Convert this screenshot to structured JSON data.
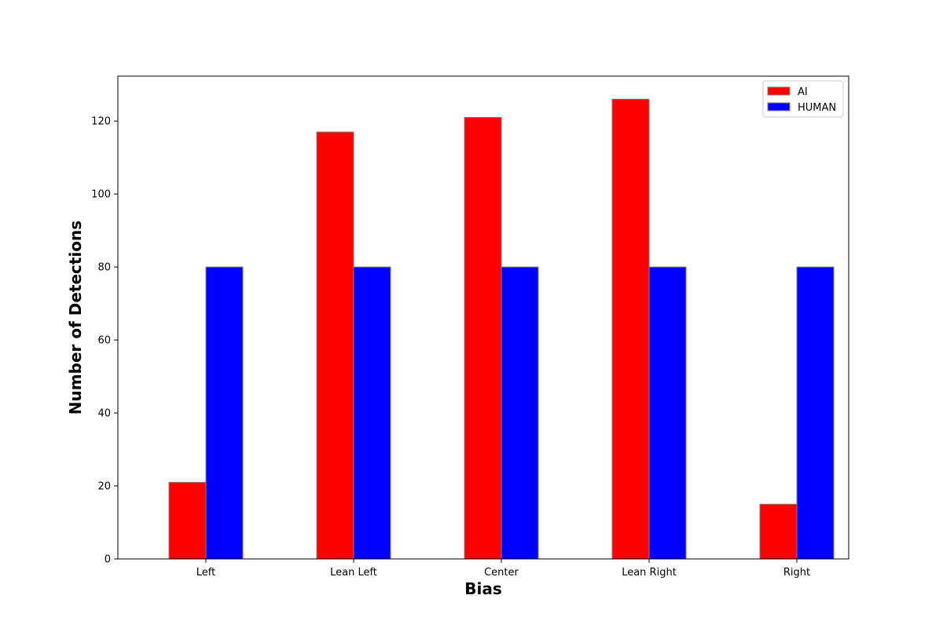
{
  "chart_data": {
    "type": "bar",
    "categories": [
      "Left",
      "Lean Left",
      "Center",
      "Lean Right",
      "Right"
    ],
    "series": [
      {
        "name": "AI",
        "values": [
          21,
          117,
          121,
          126,
          15
        ],
        "color": "#ff0000"
      },
      {
        "name": "HUMAN",
        "values": [
          80,
          80,
          80,
          80,
          80
        ],
        "color": "#0000ff"
      }
    ],
    "xlabel": "Bias",
    "ylabel": "Number of Detections",
    "ylim": [
      0,
      132.3
    ],
    "yticks": [
      0,
      20,
      40,
      60,
      80,
      100,
      120
    ],
    "bar_edge_color": "#808080",
    "grid": false,
    "legend_position": "top-right"
  }
}
